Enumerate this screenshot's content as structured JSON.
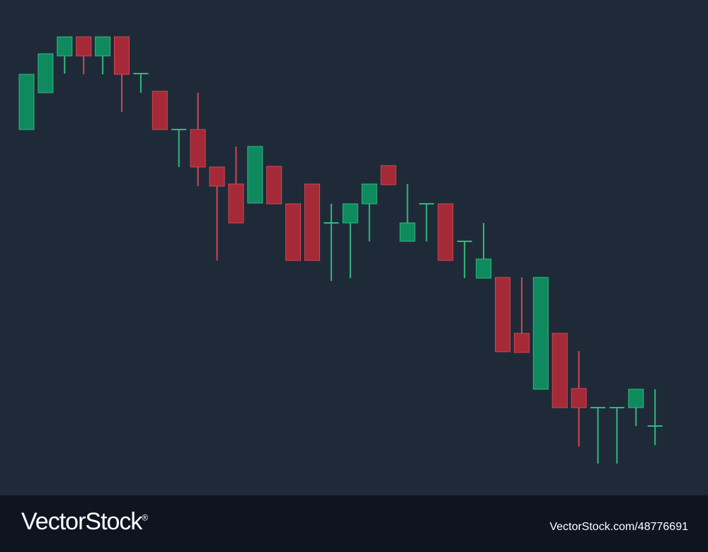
{
  "colors": {
    "background": "#1f2a38",
    "footer": "#0f1421",
    "bullish": "#0f8a5f",
    "bullish_border": "#2fb97f",
    "bearish": "#a32a36",
    "bearish_border": "#d14652"
  },
  "footer": {
    "logo_text": "VectorStock",
    "logo_mark": "®",
    "image_id": "VectorStock.com/48776691"
  },
  "chart_data": {
    "type": "candlestick",
    "title": "",
    "xlabel": "",
    "ylabel": "",
    "axes_visible": false,
    "grid": false,
    "ylim": [
      0,
      700
    ],
    "candles": [
      {
        "open": 517,
        "close": 595,
        "high": 595,
        "low": 517
      },
      {
        "open": 569,
        "close": 624,
        "high": 624,
        "low": 569
      },
      {
        "open": 621,
        "close": 648,
        "high": 648,
        "low": 596
      },
      {
        "open": 648,
        "close": 621,
        "high": 648,
        "low": 595
      },
      {
        "open": 621,
        "close": 648,
        "high": 648,
        "low": 595
      },
      {
        "open": 648,
        "close": 595,
        "high": 648,
        "low": 542
      },
      {
        "open": 596,
        "close": 596,
        "high": 596,
        "low": 569
      },
      {
        "open": 571,
        "close": 517,
        "high": 571,
        "low": 517
      },
      {
        "open": 517,
        "close": 517,
        "high": 517,
        "low": 464
      },
      {
        "open": 517,
        "close": 464,
        "high": 569,
        "low": 437
      },
      {
        "open": 464,
        "close": 437,
        "high": 464,
        "low": 332
      },
      {
        "open": 440,
        "close": 385,
        "high": 493,
        "low": 385
      },
      {
        "open": 413,
        "close": 493,
        "high": 493,
        "low": 413
      },
      {
        "open": 465,
        "close": 412,
        "high": 465,
        "low": 412
      },
      {
        "open": 412,
        "close": 332,
        "high": 412,
        "low": 332
      },
      {
        "open": 440,
        "close": 332,
        "high": 440,
        "low": 332
      },
      {
        "open": 385,
        "close": 385,
        "high": 412,
        "low": 303
      },
      {
        "open": 385,
        "close": 412,
        "high": 412,
        "low": 307
      },
      {
        "open": 412,
        "close": 440,
        "high": 440,
        "low": 359
      },
      {
        "open": 466,
        "close": 439,
        "high": 466,
        "low": 439
      },
      {
        "open": 359,
        "close": 385,
        "high": 440,
        "low": 359
      },
      {
        "open": 412,
        "close": 412,
        "high": 412,
        "low": 359
      },
      {
        "open": 412,
        "close": 332,
        "high": 412,
        "low": 332
      },
      {
        "open": 359,
        "close": 359,
        "high": 359,
        "low": 307
      },
      {
        "open": 307,
        "close": 334,
        "high": 385,
        "low": 307
      },
      {
        "open": 308,
        "close": 203,
        "high": 308,
        "low": 203
      },
      {
        "open": 229,
        "close": 202,
        "high": 308,
        "low": 202
      },
      {
        "open": 150,
        "close": 308,
        "high": 308,
        "low": 150
      },
      {
        "open": 229,
        "close": 124,
        "high": 229,
        "low": 124
      },
      {
        "open": 151,
        "close": 124,
        "high": 204,
        "low": 69
      },
      {
        "open": 124,
        "close": 124,
        "high": 124,
        "low": 45
      },
      {
        "open": 124,
        "close": 124,
        "high": 124,
        "low": 45
      },
      {
        "open": 124,
        "close": 150,
        "high": 150,
        "low": 98
      },
      {
        "open": 98,
        "close": 98,
        "high": 150,
        "low": 71
      }
    ],
    "directions": [
      "up",
      "up",
      "up",
      "down",
      "up",
      "down",
      "up",
      "down",
      "up",
      "down",
      "down",
      "down",
      "up",
      "down",
      "down",
      "down",
      "up",
      "up",
      "up",
      "down",
      "up",
      "up",
      "down",
      "up",
      "up",
      "down",
      "down",
      "up",
      "down",
      "down",
      "up",
      "up",
      "up",
      "up"
    ]
  }
}
